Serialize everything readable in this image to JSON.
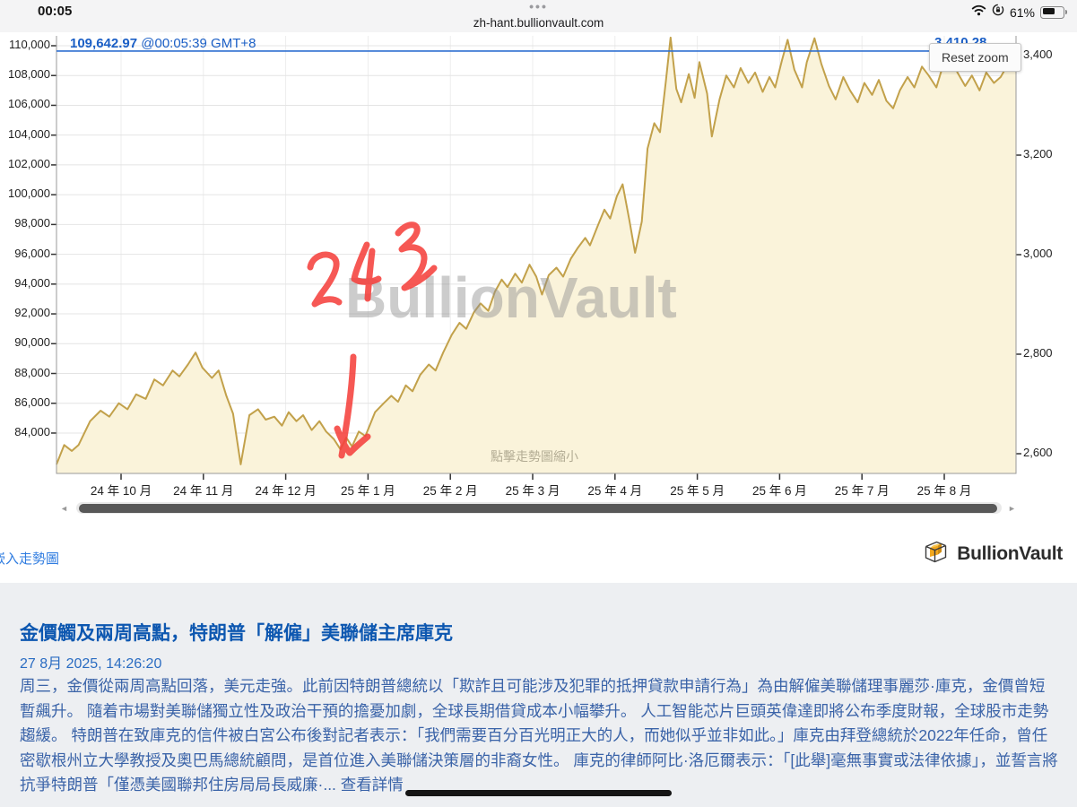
{
  "status_bar": {
    "time": "00:05",
    "battery": "61%"
  },
  "browser": {
    "tab_dots": "•••",
    "url": "zh-hant.bullionvault.com"
  },
  "chart": {
    "price_label": "109,642.97",
    "price_time": "@00:05:39 GMT+8",
    "right_price_label": "3,410.28",
    "reset_zoom": "Reset zoom",
    "watermark": "BullionVault",
    "zoom_hint": "點擊走勢圖縮小",
    "handwritten_note": "2 4 3",
    "colors": {
      "line": "#c2a14b",
      "fill": "#faf3da",
      "accent_blue": "#2e6fd0",
      "annotation_red": "#f5413d"
    }
  },
  "chart_data": {
    "type": "area",
    "title": "",
    "xlabel": "",
    "ylabel_left": "",
    "x_labels": [
      "24 年 10 月",
      "24 年 11 月",
      "24 年 12 月",
      "25 年 1 月",
      "25 年 2 月",
      "25 年 3 月",
      "25 年 4 月",
      "25 年 5 月",
      "25 年 6 月",
      "25 年 7 月",
      "25 年 8 月"
    ],
    "y_left_values": [
      110000,
      108000,
      106000,
      104000,
      102000,
      100000,
      98000,
      96000,
      94000,
      92000,
      90000,
      88000,
      86000,
      84000
    ],
    "y_left_ticks": [
      "110,000",
      "108,000",
      "106,000",
      "104,000",
      "102,000",
      "100,000",
      "98,000",
      "96,000",
      "94,000",
      "92,000",
      "90,000",
      "88,000",
      "86,000",
      "84,000"
    ],
    "y_right_ticks": [
      "3,400",
      "3,200",
      "3,000",
      "2,800",
      "2,600"
    ],
    "y_left_range": [
      81290,
      110662
    ],
    "current_value": 109642.97,
    "legend": [],
    "grid": true,
    "points": [
      [
        0,
        81900
      ],
      [
        0.008,
        83200
      ],
      [
        0.016,
        82800
      ],
      [
        0.023,
        83200
      ],
      [
        0.035,
        84800
      ],
      [
        0.046,
        85500
      ],
      [
        0.055,
        85100
      ],
      [
        0.065,
        86000
      ],
      [
        0.074,
        85600
      ],
      [
        0.083,
        86600
      ],
      [
        0.093,
        86300
      ],
      [
        0.102,
        87600
      ],
      [
        0.111,
        87200
      ],
      [
        0.121,
        88200
      ],
      [
        0.128,
        87800
      ],
      [
        0.137,
        88600
      ],
      [
        0.145,
        89400
      ],
      [
        0.152,
        88400
      ],
      [
        0.162,
        87700
      ],
      [
        0.169,
        88200
      ],
      [
        0.177,
        86500
      ],
      [
        0.184,
        85300
      ],
      [
        0.192,
        81900
      ],
      [
        0.201,
        85200
      ],
      [
        0.21,
        85600
      ],
      [
        0.218,
        84900
      ],
      [
        0.227,
        85100
      ],
      [
        0.235,
        84500
      ],
      [
        0.242,
        85400
      ],
      [
        0.25,
        84800
      ],
      [
        0.257,
        85200
      ],
      [
        0.266,
        84200
      ],
      [
        0.274,
        84800
      ],
      [
        0.281,
        84100
      ],
      [
        0.289,
        83600
      ],
      [
        0.296,
        82900
      ],
      [
        0.302,
        83700
      ],
      [
        0.308,
        83100
      ],
      [
        0.315,
        84100
      ],
      [
        0.322,
        83800
      ],
      [
        0.332,
        85400
      ],
      [
        0.341,
        86000
      ],
      [
        0.349,
        86500
      ],
      [
        0.356,
        86100
      ],
      [
        0.364,
        87200
      ],
      [
        0.371,
        86800
      ],
      [
        0.379,
        87900
      ],
      [
        0.388,
        88600
      ],
      [
        0.395,
        88200
      ],
      [
        0.403,
        89400
      ],
      [
        0.412,
        90600
      ],
      [
        0.42,
        91400
      ],
      [
        0.427,
        91000
      ],
      [
        0.435,
        92100
      ],
      [
        0.442,
        92700
      ],
      [
        0.45,
        92200
      ],
      [
        0.457,
        93500
      ],
      [
        0.464,
        94300
      ],
      [
        0.47,
        93800
      ],
      [
        0.478,
        94700
      ],
      [
        0.485,
        94100
      ],
      [
        0.493,
        95300
      ],
      [
        0.5,
        94500
      ],
      [
        0.506,
        93300
      ],
      [
        0.513,
        94600
      ],
      [
        0.521,
        95100
      ],
      [
        0.528,
        94500
      ],
      [
        0.536,
        95700
      ],
      [
        0.543,
        96400
      ],
      [
        0.551,
        97100
      ],
      [
        0.556,
        96600
      ],
      [
        0.564,
        97900
      ],
      [
        0.571,
        99000
      ],
      [
        0.577,
        98400
      ],
      [
        0.584,
        99900
      ],
      [
        0.59,
        100700
      ],
      [
        0.597,
        98300
      ],
      [
        0.603,
        96100
      ],
      [
        0.61,
        98200
      ],
      [
        0.616,
        103100
      ],
      [
        0.623,
        104800
      ],
      [
        0.629,
        104200
      ],
      [
        0.635,
        107600
      ],
      [
        0.64,
        110550
      ],
      [
        0.646,
        107100
      ],
      [
        0.651,
        106200
      ],
      [
        0.659,
        108100
      ],
      [
        0.665,
        106500
      ],
      [
        0.67,
        108900
      ],
      [
        0.678,
        106800
      ],
      [
        0.683,
        103900
      ],
      [
        0.691,
        106400
      ],
      [
        0.698,
        108000
      ],
      [
        0.706,
        107200
      ],
      [
        0.713,
        108500
      ],
      [
        0.721,
        107500
      ],
      [
        0.728,
        108200
      ],
      [
        0.736,
        106900
      ],
      [
        0.743,
        107900
      ],
      [
        0.749,
        107200
      ],
      [
        0.756,
        109000
      ],
      [
        0.762,
        110400
      ],
      [
        0.769,
        108400
      ],
      [
        0.777,
        107200
      ],
      [
        0.782,
        108900
      ],
      [
        0.79,
        110500
      ],
      [
        0.797,
        108800
      ],
      [
        0.805,
        107300
      ],
      [
        0.812,
        106400
      ],
      [
        0.82,
        107900
      ],
      [
        0.827,
        107000
      ],
      [
        0.835,
        106200
      ],
      [
        0.842,
        107500
      ],
      [
        0.85,
        106700
      ],
      [
        0.857,
        107700
      ],
      [
        0.865,
        106300
      ],
      [
        0.872,
        105800
      ],
      [
        0.879,
        107000
      ],
      [
        0.887,
        107900
      ],
      [
        0.894,
        107200
      ],
      [
        0.902,
        108600
      ],
      [
        0.909,
        108000
      ],
      [
        0.917,
        107200
      ],
      [
        0.924,
        108700
      ],
      [
        0.932,
        109600
      ],
      [
        0.939,
        108200
      ],
      [
        0.947,
        107300
      ],
      [
        0.954,
        108000
      ],
      [
        0.962,
        107000
      ],
      [
        0.969,
        108200
      ],
      [
        0.977,
        107500
      ],
      [
        0.984,
        107900
      ],
      [
        0.992,
        108800
      ],
      [
        1,
        108300
      ]
    ]
  },
  "footer": {
    "embed_link": "嵌入走勢圖",
    "brand": "BullionVault"
  },
  "news": {
    "headline": "金價觸及兩周高點，特朗普「解僱」美聯儲主席庫克",
    "date": "27 8月 2025, 14:26:20",
    "body": "周三，金價從兩周高點回落，美元走強。此前因特朗普總統以「欺詐且可能涉及犯罪的抵押貸款申請行為」為由解僱美聯儲理事麗莎·庫克，金價曾短暫飆升。 隨着市場對美聯儲獨立性及政治干預的擔憂加劇，全球長期借貸成本小幅攀升。 人工智能芯片巨頭英偉達即將公布季度財報，全球股市走勢趨緩。 特朗普在致庫克的信件被白宮公布後對記者表示：「我們需要百分百光明正大的人，而她似乎並非如此。」庫克由拜登總統於2022年任命，曾任密歇根州立大學教授及奧巴馬總統顧問，是首位進入美聯儲決策層的非裔女性。 庫克的律師阿比·洛厄爾表示：「[此舉]毫無事實或法律依據」，並誓言將抗爭特朗普「僅憑美國聯邦住房局局長威廉·... ",
    "more_link": "查看詳情"
  }
}
